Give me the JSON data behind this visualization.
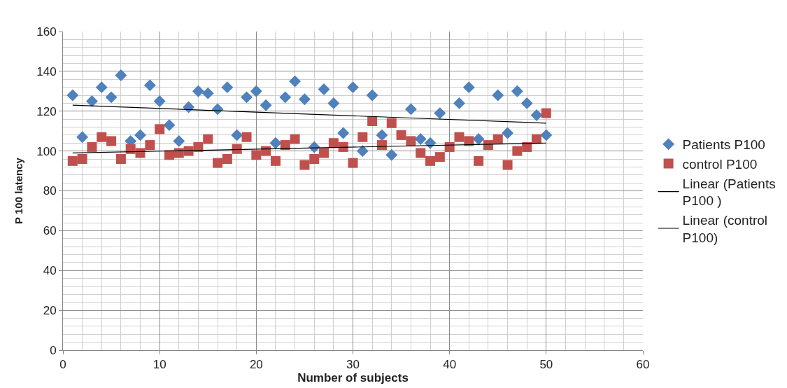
{
  "chart_data": {
    "type": "scatter",
    "xlabel": "Number of subjects",
    "ylabel": "P 100 latency",
    "xlim": [
      0,
      60
    ],
    "xticks": [
      0,
      10,
      20,
      30,
      40,
      50,
      60
    ],
    "ylim": [
      0,
      160
    ],
    "yticks": [
      0,
      20,
      40,
      60,
      80,
      100,
      120,
      140,
      160
    ],
    "grid": true,
    "legend": "right",
    "series": [
      {
        "name": "Patients P100",
        "color": "#4f81bd",
        "marker": "diamond",
        "x": [
          1,
          2,
          3,
          4,
          5,
          6,
          7,
          8,
          9,
          10,
          11,
          12,
          13,
          14,
          15,
          16,
          17,
          18,
          19,
          20,
          21,
          22,
          23,
          24,
          25,
          26,
          27,
          28,
          29,
          30,
          31,
          32,
          33,
          34,
          35,
          36,
          37,
          38,
          39,
          40,
          41,
          42,
          43,
          44,
          45,
          46,
          47,
          48,
          49,
          50
        ],
        "values": [
          128,
          107,
          125,
          132,
          127,
          138,
          105,
          108,
          133,
          125,
          113,
          105,
          122,
          130,
          129,
          121,
          132,
          108,
          127,
          130,
          123,
          104,
          127,
          135,
          126,
          102,
          131,
          124,
          109,
          132,
          100,
          128,
          108,
          98,
          null,
          121,
          106,
          104,
          119,
          null,
          124,
          132,
          106,
          null,
          128,
          109,
          130,
          124,
          118,
          108
        ]
      },
      {
        "name": "control P100",
        "color": "#c0504d",
        "marker": "square",
        "x": [
          1,
          2,
          3,
          4,
          5,
          6,
          7,
          8,
          9,
          10,
          11,
          12,
          13,
          14,
          15,
          16,
          17,
          18,
          19,
          20,
          21,
          22,
          23,
          24,
          25,
          26,
          27,
          28,
          29,
          30,
          31,
          32,
          33,
          34,
          35,
          36,
          37,
          38,
          39,
          40,
          41,
          42,
          43,
          44,
          45,
          46,
          47,
          48,
          49,
          50
        ],
        "values": [
          95,
          96,
          102,
          107,
          105,
          96,
          101,
          99,
          103,
          111,
          98,
          99,
          100,
          102,
          106,
          94,
          96,
          101,
          107,
          98,
          100,
          95,
          103,
          106,
          93,
          96,
          99,
          104,
          102,
          94,
          107,
          115,
          103,
          114,
          108,
          105,
          99,
          95,
          97,
          102,
          107,
          105,
          95,
          103,
          106,
          93,
          100,
          102,
          106,
          119
        ]
      },
      {
        "name": "Linear (Patients P100 )",
        "type": "line",
        "color": "#000000",
        "marker": "none",
        "x": [
          1,
          50
        ],
        "values": [
          123,
          114
        ]
      },
      {
        "name": "Linear (control P100)",
        "type": "line",
        "color": "#000000",
        "marker": "none",
        "x": [
          1,
          50
        ],
        "values": [
          99,
          104
        ]
      }
    ]
  }
}
